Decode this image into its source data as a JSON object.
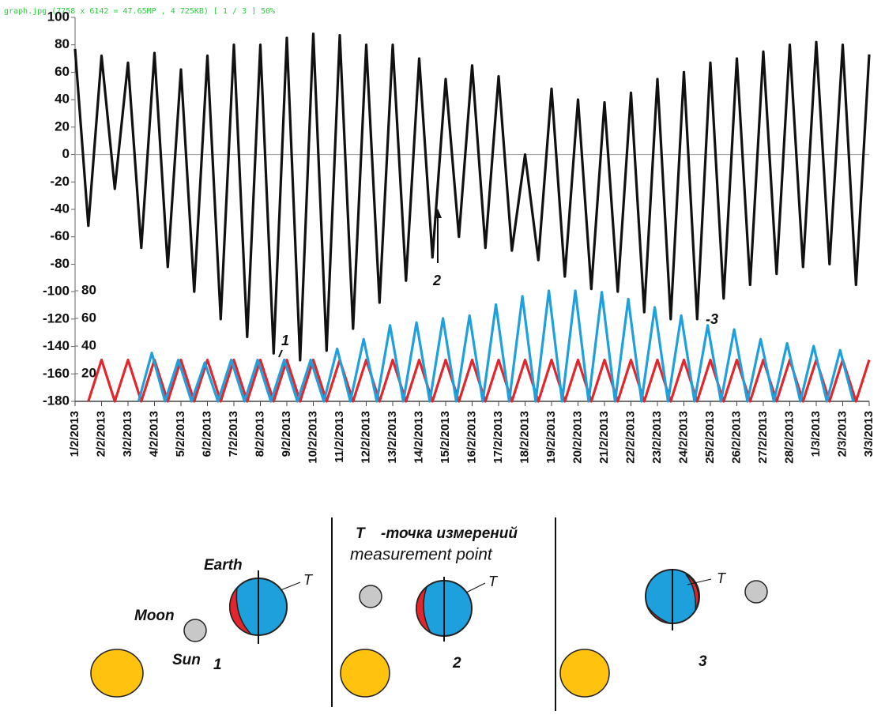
{
  "viewer_caption": "graph.jpg (7758 x 6142 = 47.65MP  ,  4 725KB) [ 1 / 3 ]  50%",
  "chart_data": {
    "type": "line",
    "xlim": [
      0,
      30
    ],
    "xticks": [
      {
        "value": 0,
        "label": "1/2/2013"
      },
      {
        "value": 1,
        "label": "2/2/2013"
      },
      {
        "value": 2,
        "label": "3/2/2013"
      },
      {
        "value": 3,
        "label": "4/2/2013"
      },
      {
        "value": 4,
        "label": "5/2/2013"
      },
      {
        "value": 5,
        "label": "6/2/2013"
      },
      {
        "value": 6,
        "label": "7/2/2013"
      },
      {
        "value": 7,
        "label": "8/2/2013"
      },
      {
        "value": 8,
        "label": "9/2/2013"
      },
      {
        "value": 9,
        "label": "10/2/2013"
      },
      {
        "value": 10,
        "label": "11/2/2013"
      },
      {
        "value": 11,
        "label": "12/2/2013"
      },
      {
        "value": 12,
        "label": "13/2/2013"
      },
      {
        "value": 13,
        "label": "14/2/2013"
      },
      {
        "value": 14,
        "label": "15/2/2013"
      },
      {
        "value": 15,
        "label": "16/2/2013"
      },
      {
        "value": 16,
        "label": "17/2/2013"
      },
      {
        "value": 17,
        "label": "18/2/2013"
      },
      {
        "value": 18,
        "label": "19/2/2013"
      },
      {
        "value": 19,
        "label": "20/2/2013"
      },
      {
        "value": 20,
        "label": "21/2/2013"
      },
      {
        "value": 21,
        "label": "22/2/2013"
      },
      {
        "value": 22,
        "label": "23/2/2013"
      },
      {
        "value": 23,
        "label": "24/2/2013"
      },
      {
        "value": 24,
        "label": "25/2/2013"
      },
      {
        "value": 25,
        "label": "26/2/2013"
      },
      {
        "value": 26,
        "label": "27/2/2013"
      },
      {
        "value": 27,
        "label": "28/2/2013"
      },
      {
        "value": 28,
        "label": "1/3/2013"
      },
      {
        "value": 29,
        "label": "2/3/2013"
      },
      {
        "value": 30,
        "label": "3/3/2013"
      }
    ],
    "ylim": [
      -180,
      100
    ],
    "yticks": [
      -180,
      -160,
      -140,
      -120,
      -100,
      -80,
      -60,
      -40,
      -20,
      0,
      20,
      40,
      60,
      80,
      100
    ],
    "y2lim": [
      0,
      80
    ],
    "y2ticks": [
      20,
      40,
      60,
      80
    ],
    "annotations": [
      "1",
      "2",
      "-3"
    ],
    "series": [
      {
        "color": "#111111",
        "x": [
          0,
          0.5,
          1,
          1.5,
          2,
          2.5,
          3,
          3.5,
          4,
          4.5,
          5,
          5.5,
          6,
          6.5,
          7,
          7.5,
          8,
          8.5,
          9,
          9.5,
          10,
          10.5,
          11,
          11.5,
          12,
          12.5,
          13,
          13.5,
          14,
          14.5,
          15,
          15.5,
          16,
          16.5,
          17,
          17.5,
          18,
          18.5,
          19,
          19.5,
          20,
          20.5,
          21,
          21.5,
          22,
          22.5,
          23,
          23.5,
          24,
          24.5,
          25,
          25.5,
          26,
          26.5,
          27,
          27.5,
          28,
          28.5,
          29,
          29.5,
          30
        ],
        "values": [
          77,
          -52,
          72,
          -25,
          67,
          -68,
          74,
          -82,
          62,
          -100,
          72,
          -120,
          80,
          -133,
          80,
          -145,
          85,
          -150,
          88,
          -143,
          87,
          -127,
          80,
          -108,
          80,
          -92,
          70,
          -75,
          55,
          -60,
          65,
          -68,
          57,
          -70,
          0,
          -77,
          48,
          -89,
          40,
          -98,
          38,
          -100,
          45,
          -115,
          55,
          -120,
          60,
          -120,
          67,
          -105,
          70,
          -95,
          75,
          -87,
          80,
          -82,
          82,
          -80,
          80,
          -95,
          73
        ]
      },
      {
        "color": "#e3262b",
        "axis": "y2",
        "x": [
          0.5,
          1,
          1.5,
          2,
          2.5,
          3,
          3.5,
          4,
          4.5,
          5,
          5.5,
          6,
          6.5,
          7,
          7.5,
          8,
          8.5,
          9,
          9.5,
          10,
          10.5,
          11,
          11.5,
          12,
          12.5,
          13,
          13.5,
          14,
          14.5,
          15,
          15.5,
          16,
          16.5,
          17,
          17.5,
          18,
          18.5,
          19,
          19.5,
          20,
          20.5,
          21,
          21.5,
          22,
          22.5,
          23,
          23.5,
          24,
          24.5,
          25,
          25.5,
          26,
          26.5,
          27,
          27.5,
          28,
          28.5,
          29,
          29.5,
          30
        ],
        "values": [
          0,
          30,
          0,
          30,
          0,
          30,
          0,
          30,
          0,
          30,
          0,
          30,
          0,
          30,
          0,
          30,
          0,
          30,
          0,
          30,
          0,
          30,
          0,
          30,
          0,
          30,
          0,
          30,
          0,
          30,
          0,
          30,
          0,
          30,
          0,
          30,
          0,
          30,
          0,
          30,
          0,
          30,
          0,
          30,
          0,
          30,
          0,
          30,
          0,
          30,
          0,
          30,
          0,
          30,
          0,
          30,
          0,
          30,
          0,
          30
        ]
      },
      {
        "color": "#1ea0dd",
        "axis": "y2",
        "x": [
          2.4,
          2.9,
          3.4,
          3.9,
          4.4,
          4.9,
          5.4,
          5.9,
          6.4,
          6.9,
          7.4,
          7.9,
          8.4,
          8.9,
          9.4,
          9.9,
          10.4,
          10.9,
          11.4,
          11.9,
          12.4,
          12.9,
          13.4,
          13.9,
          14.4,
          14.9,
          15.4,
          15.9,
          16.4,
          16.9,
          17.4,
          17.9,
          18.4,
          18.9,
          19.4,
          19.9,
          20.4,
          20.9,
          21.4,
          21.9,
          22.4,
          22.9,
          23.4,
          23.9,
          24.4,
          24.9,
          25.4,
          25.9,
          26.4,
          26.9,
          27.4,
          27.9,
          28.4,
          28.9,
          29.4
        ],
        "values": [
          0,
          35,
          0,
          30,
          0,
          28,
          0,
          30,
          0,
          30,
          0,
          30,
          0,
          30,
          0,
          38,
          0,
          45,
          0,
          55,
          0,
          57,
          0,
          60,
          0,
          62,
          0,
          70,
          0,
          76,
          0,
          80,
          0,
          80,
          0,
          79,
          0,
          74,
          0,
          68,
          0,
          62,
          0,
          55,
          0,
          52,
          0,
          45,
          0,
          42,
          0,
          40,
          0,
          37,
          0
        ]
      }
    ]
  },
  "diagram": {
    "legend_symbol": "T",
    "legend_ru": "-точка измерений",
    "legend_en": "measurement point",
    "earth": "Earth",
    "moon": "Moon",
    "sun": "Sun",
    "point": "T",
    "panels": [
      "1",
      "2",
      "3"
    ]
  }
}
